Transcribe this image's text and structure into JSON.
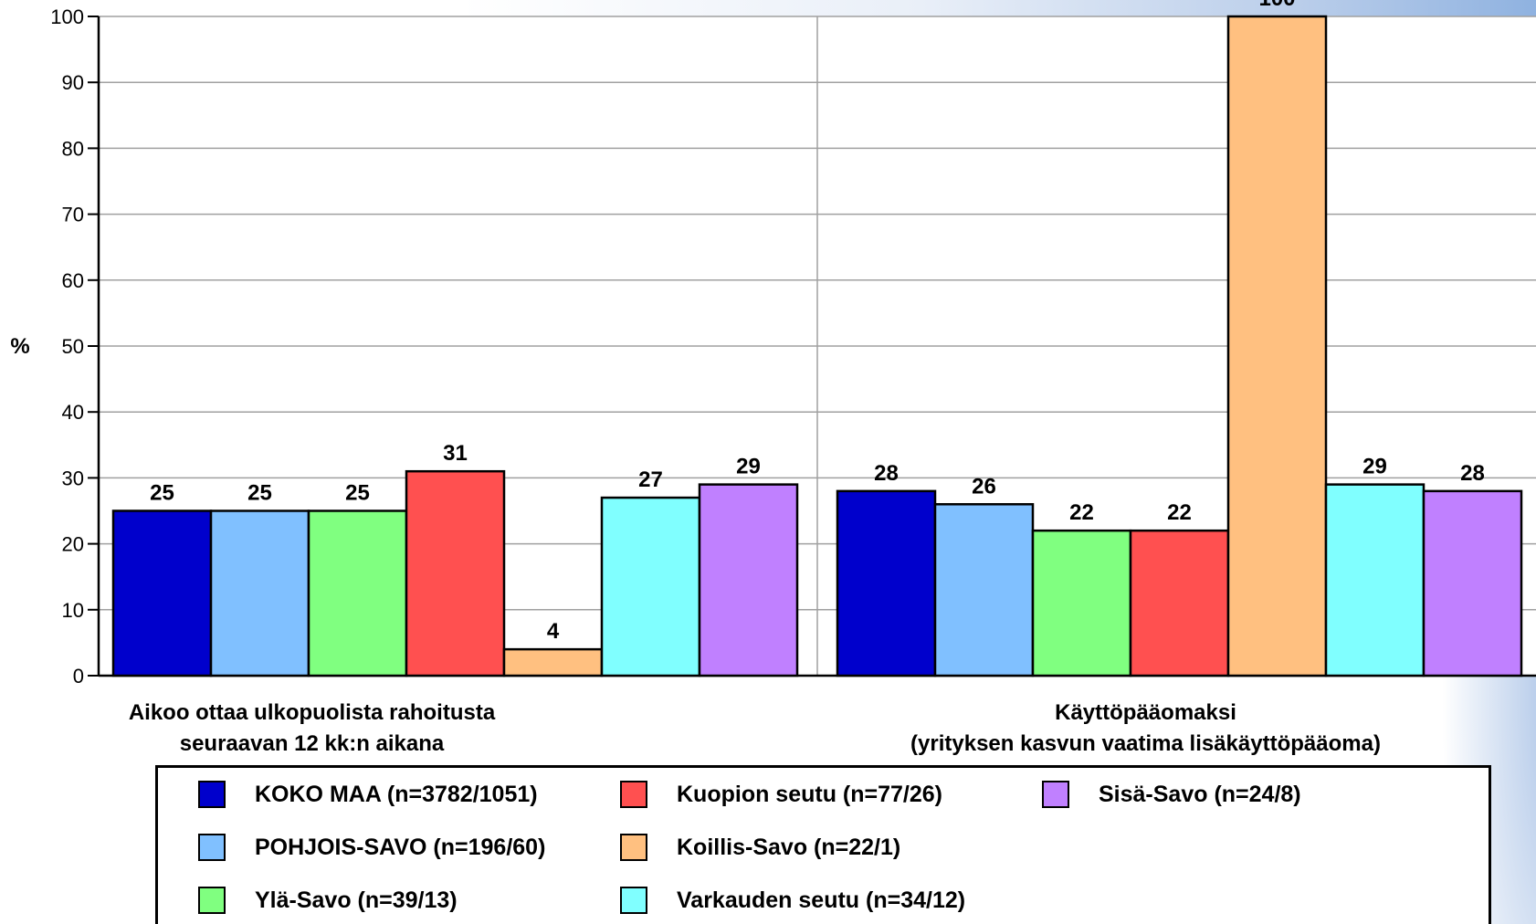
{
  "chart_data": {
    "type": "bar",
    "ylabel": "%",
    "ylim": [
      0,
      100
    ],
    "yticks": [
      0,
      10,
      20,
      30,
      40,
      50,
      60,
      70,
      80,
      90,
      100
    ],
    "grid": true,
    "categories": [
      [
        "Aikoo ottaa ulkopuolista rahoitusta",
        "seuraavan 12 kk:n aikana"
      ],
      [
        "Käyttöpääomaksi",
        "(yrityksen kasvun vaatima lisäkäyttöpääoma)"
      ]
    ],
    "series": [
      {
        "name": "KOKO MAA (n=3782/1051)",
        "color": "#0000cc",
        "values": [
          25,
          28
        ]
      },
      {
        "name": "POHJOIS-SAVO (n=196/60)",
        "color": "#80c0ff",
        "values": [
          25,
          26
        ]
      },
      {
        "name": "Ylä-Savo (n=39/13)",
        "color": "#80ff80",
        "values": [
          25,
          22
        ]
      },
      {
        "name": "Kuopion seutu (n=77/26)",
        "color": "#ff5050",
        "values": [
          31,
          22
        ]
      },
      {
        "name": "Koillis-Savo (n=22/1)",
        "color": "#ffc080",
        "values": [
          4,
          100
        ]
      },
      {
        "name": "Varkauden seutu (n=34/12)",
        "color": "#80ffff",
        "values": [
          27,
          29
        ]
      },
      {
        "name": "Sisä-Savo (n=24/8)",
        "color": "#c080ff",
        "values": [
          29,
          28
        ]
      }
    ],
    "legend_position": "bottom"
  }
}
